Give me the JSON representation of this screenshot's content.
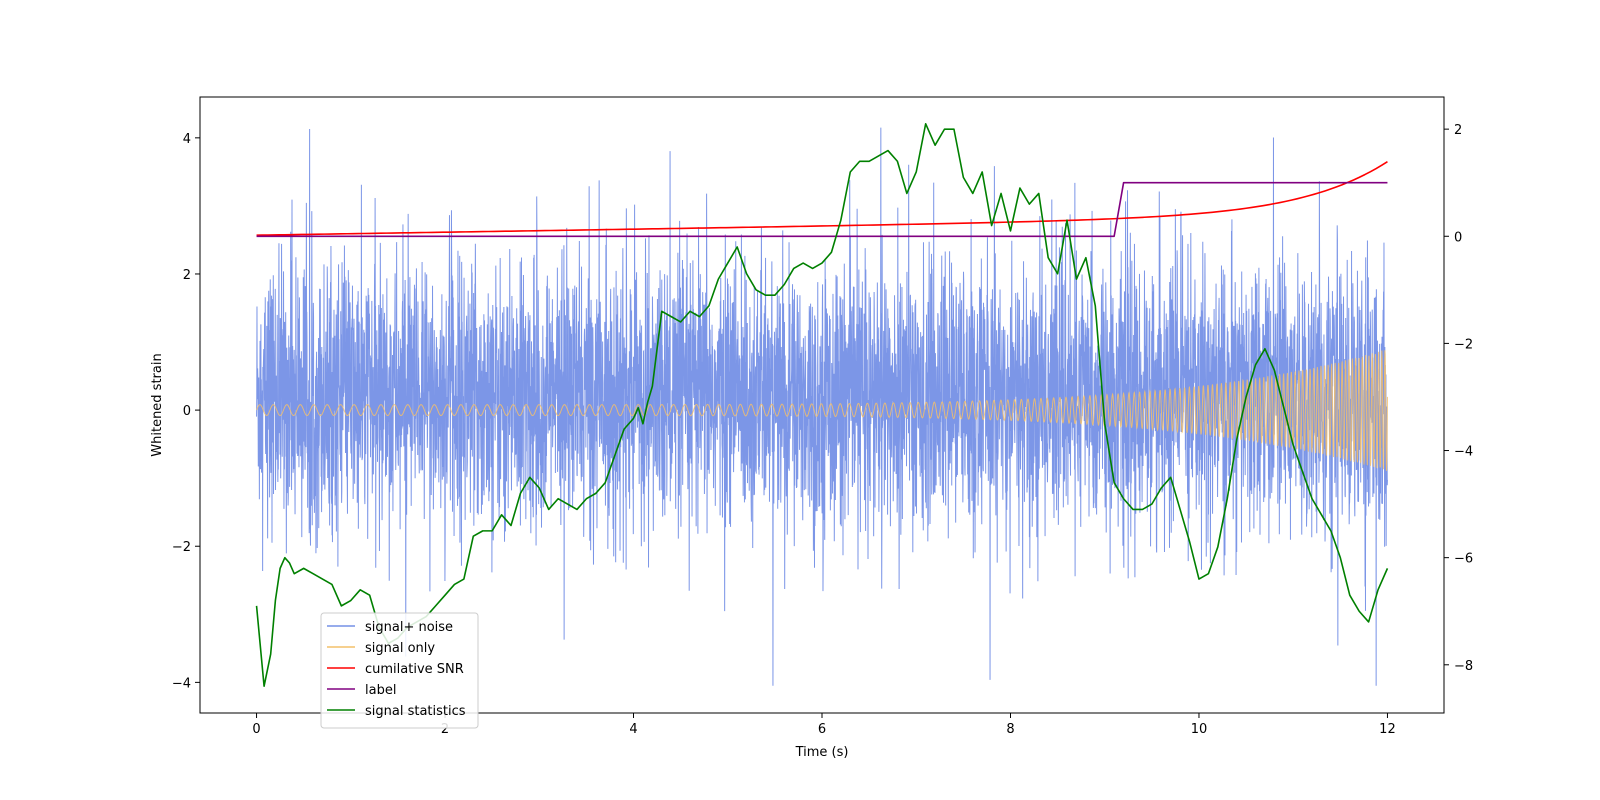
{
  "chart_data": {
    "type": "line",
    "title": "",
    "xlabel": "Time (s)",
    "ylabel": "Whitened strain",
    "xlim": [
      -0.6,
      12.6
    ],
    "ylim": [
      -4.45,
      4.6
    ],
    "ylim_right": [
      -8.9,
      2.6
    ],
    "x_ticks": [
      0,
      2,
      4,
      6,
      8,
      10,
      12
    ],
    "y_ticks": [
      -4,
      -2,
      0,
      2,
      4
    ],
    "y_ticks_right": [
      -8,
      -6,
      -4,
      -2,
      0,
      2
    ],
    "legend_position": "lower-left",
    "colors": {
      "noise": "#7590e6",
      "signal": "#f4c06a",
      "snr": "#ff0000",
      "label": "#800080",
      "stats": "#008000"
    },
    "series": [
      {
        "name": "signal+ noise",
        "axis": "left",
        "description_values": "whitened strain noise, approx. within [-4.05, 4.15], samples over t in [0, 12]",
        "amplitude_range": [
          -4.05,
          4.15
        ],
        "typical_band": [
          -1.9,
          2.3
        ],
        "t_range": [
          0,
          12
        ]
      },
      {
        "name": "signal only",
        "axis": "left",
        "t_range": [
          0,
          12
        ],
        "envelope_start": 0.08,
        "envelope_end": 0.9,
        "freq_start_hz": 7,
        "freq_end_hz": 30
      },
      {
        "name": "cumilative SNR",
        "axis": "right",
        "x": [
          0,
          2,
          4,
          6,
          8,
          9,
          10,
          10.5,
          11,
          11.5,
          11.8,
          12
        ],
        "y": [
          0.02,
          0.1,
          0.18,
          0.28,
          0.38,
          0.46,
          0.58,
          0.67,
          0.76,
          0.86,
          0.94,
          1.02
        ]
      },
      {
        "name": "label",
        "axis": "right",
        "x": [
          0,
          9.1,
          9.2,
          12
        ],
        "y": [
          0,
          0,
          1,
          1
        ]
      },
      {
        "name": "signal statistics",
        "axis": "right",
        "x": [
          0,
          0.08,
          0.15,
          0.2,
          0.25,
          0.3,
          0.35,
          0.4,
          0.5,
          0.6,
          0.7,
          0.8,
          0.9,
          1.0,
          1.1,
          1.2,
          1.3,
          1.4,
          1.5,
          1.6,
          1.7,
          1.8,
          1.9,
          2.0,
          2.1,
          2.2,
          2.3,
          2.4,
          2.5,
          2.6,
          2.7,
          2.8,
          2.9,
          3.0,
          3.1,
          3.2,
          3.3,
          3.4,
          3.5,
          3.6,
          3.7,
          3.8,
          3.9,
          4.0,
          4.05,
          4.1,
          4.15,
          4.2,
          4.3,
          4.4,
          4.5,
          4.6,
          4.7,
          4.8,
          4.9,
          5.0,
          5.1,
          5.2,
          5.3,
          5.4,
          5.5,
          5.6,
          5.7,
          5.8,
          5.9,
          6.0,
          6.1,
          6.2,
          6.3,
          6.4,
          6.5,
          6.6,
          6.7,
          6.8,
          6.9,
          7.0,
          7.1,
          7.2,
          7.3,
          7.4,
          7.5,
          7.6,
          7.7,
          7.8,
          7.9,
          8.0,
          8.1,
          8.2,
          8.3,
          8.4,
          8.5,
          8.6,
          8.7,
          8.8,
          8.9,
          9.0,
          9.1,
          9.2,
          9.3,
          9.4,
          9.5,
          9.6,
          9.7,
          9.8,
          9.9,
          10.0,
          10.1,
          10.2,
          10.3,
          10.4,
          10.5,
          10.6,
          10.7,
          10.8,
          10.9,
          11.0,
          11.1,
          11.2,
          11.3,
          11.4,
          11.5,
          11.6,
          11.7,
          11.8,
          11.9,
          12.0
        ],
        "y": [
          -6.9,
          -8.4,
          -7.8,
          -6.8,
          -6.2,
          -6.0,
          -6.1,
          -6.3,
          -6.2,
          -6.3,
          -6.4,
          -6.5,
          -6.9,
          -6.8,
          -6.6,
          -6.7,
          -7.3,
          -7.6,
          -7.5,
          -7.3,
          -7.2,
          -7.1,
          -6.9,
          -6.7,
          -6.5,
          -6.4,
          -5.6,
          -5.5,
          -5.5,
          -5.2,
          -5.4,
          -4.8,
          -4.5,
          -4.7,
          -5.1,
          -4.9,
          -5.0,
          -5.1,
          -4.9,
          -4.8,
          -4.6,
          -4.1,
          -3.6,
          -3.4,
          -3.2,
          -3.5,
          -3.1,
          -2.8,
          -1.4,
          -1.5,
          -1.6,
          -1.4,
          -1.5,
          -1.3,
          -0.8,
          -0.5,
          -0.2,
          -0.7,
          -1.0,
          -1.1,
          -1.1,
          -0.9,
          -0.6,
          -0.5,
          -0.6,
          -0.5,
          -0.3,
          0.3,
          1.2,
          1.4,
          1.4,
          1.5,
          1.6,
          1.4,
          0.8,
          1.2,
          2.1,
          1.7,
          2.0,
          2.0,
          1.1,
          0.8,
          1.2,
          0.2,
          0.8,
          0.1,
          0.9,
          0.6,
          0.8,
          -0.4,
          -0.7,
          0.3,
          -0.8,
          -0.4,
          -1.3,
          -3.5,
          -4.6,
          -4.9,
          -5.1,
          -5.1,
          -5.0,
          -4.7,
          -4.5,
          -5.1,
          -5.7,
          -6.4,
          -6.3,
          -5.8,
          -4.9,
          -3.8,
          -3.0,
          -2.4,
          -2.1,
          -2.5,
          -3.2,
          -3.9,
          -4.4,
          -4.9,
          -5.2,
          -5.5,
          -6.0,
          -6.7,
          -7.0,
          -7.2,
          -6.6,
          -6.2
        ]
      }
    ]
  }
}
